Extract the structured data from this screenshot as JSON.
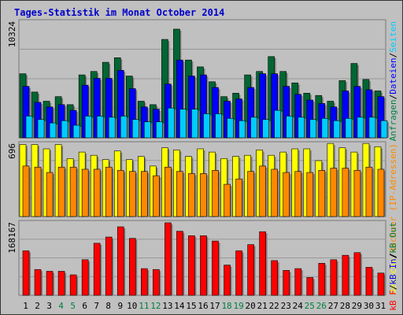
{
  "title": "Tages-Statistik im Monat October 2014",
  "colors": {
    "title": "#0000CC",
    "border": "#333333",
    "plot_bg": "#C0C0C0",
    "grid": "#999999",
    "hits": "#006633",
    "files": "#0000FF",
    "pages": "#00CCFF",
    "visits": "#FFFF00",
    "sites": "#FF8800",
    "kbin": "#FF0000",
    "label_blue": "#0000FF",
    "label_green": "#008040",
    "label_orange": "#FF8800",
    "label_red": "#FF0000",
    "weekend_day": "#008040",
    "week_day": "#000000"
  },
  "chart_data": [
    {
      "type": "bar",
      "panel": "requests",
      "ymax_label": "10324",
      "ylim": [
        0,
        10324
      ],
      "right_label": [
        {
          "text": "Anfragen",
          "color": "#008040"
        },
        {
          "text": "/",
          "color": "#000000"
        },
        {
          "text": "Dateien",
          "color": "#0000FF"
        },
        {
          "text": "/",
          "color": "#000000"
        },
        {
          "text": "Seiten",
          "color": "#00CCFF"
        }
      ],
      "series": [
        {
          "name": "Anfragen",
          "values": [
            5600,
            4000,
            3200,
            3600,
            2900,
            5500,
            5800,
            6600,
            7000,
            5400,
            3200,
            2900,
            8600,
            9500,
            6800,
            6200,
            4900,
            3600,
            3900,
            5500,
            5800,
            7100,
            5800,
            4800,
            3900,
            3700,
            3200,
            5000,
            6500,
            5100,
            4100
          ]
        },
        {
          "name": "Dateien",
          "values": [
            4500,
            3100,
            2700,
            2900,
            2400,
            4600,
            5200,
            5200,
            5900,
            4300,
            2700,
            2500,
            4700,
            6800,
            5400,
            5500,
            4400,
            3200,
            3400,
            4400,
            5600,
            5600,
            4500,
            3800,
            3300,
            3000,
            2700,
            4100,
            4500,
            4200,
            3600
          ]
        },
        {
          "name": "Seiten",
          "values": [
            1900,
            1600,
            1300,
            1500,
            1100,
            1900,
            1900,
            1800,
            1900,
            1600,
            1400,
            1400,
            2600,
            2500,
            2500,
            2100,
            2100,
            1700,
            1500,
            1800,
            1600,
            2400,
            1900,
            1800,
            1600,
            1700,
            1500,
            1700,
            1800,
            1800,
            1500
          ]
        }
      ]
    },
    {
      "type": "bar",
      "panel": "visits",
      "ymax_label": "696",
      "ylim": [
        0,
        696
      ],
      "right_label": [
        {
          "text": "Besuche",
          "color": "#FFFF00"
        },
        {
          "text": "/",
          "color": "#000000"
        },
        {
          "text": "Rechner (IP-Adressen)",
          "color": "#FF8800"
        }
      ],
      "series": [
        {
          "name": "Besuche",
          "values": [
            670,
            670,
            630,
            670,
            540,
            600,
            570,
            530,
            610,
            530,
            560,
            470,
            640,
            620,
            560,
            630,
            600,
            540,
            560,
            570,
            620,
            570,
            600,
            630,
            630,
            520,
            680,
            640,
            600,
            680,
            650
          ]
        },
        {
          "name": "Rechner (IP-Adressen)",
          "values": [
            470,
            460,
            410,
            460,
            460,
            440,
            440,
            460,
            430,
            420,
            420,
            380,
            460,
            420,
            400,
            400,
            430,
            300,
            350,
            420,
            470,
            440,
            410,
            420,
            410,
            430,
            450,
            450,
            430,
            460,
            440
          ]
        }
      ]
    },
    {
      "type": "bar",
      "panel": "traffic",
      "ymax_label": "168167",
      "ylim": [
        0,
        168167
      ],
      "right_label": [
        {
          "text": "kB F",
          "color": "#FF0000"
        },
        {
          "text": "/",
          "color": "#000000"
        },
        {
          "text": "kB In",
          "color": "#0000FF"
        },
        {
          "text": "/",
          "color": "#000000"
        },
        {
          "text": "kB Out",
          "color": "#008040"
        }
      ],
      "series": [
        {
          "name": "kB F",
          "values": [
            100000,
            58000,
            54000,
            54000,
            46000,
            80000,
            117000,
            131000,
            154000,
            128000,
            60000,
            58000,
            163000,
            144000,
            134000,
            134000,
            122000,
            68000,
            100000,
            114000,
            143000,
            78000,
            56000,
            60000,
            40000,
            72000,
            80000,
            90000,
            96000,
            63000,
            50000
          ]
        }
      ]
    }
  ],
  "x_labels": [
    "1",
    "2",
    "3",
    "4",
    "5",
    "6",
    "7",
    "8",
    "9",
    "10",
    "11",
    "12",
    "13",
    "14",
    "15",
    "16",
    "17",
    "18",
    "19",
    "20",
    "21",
    "22",
    "23",
    "24",
    "25",
    "26",
    "27",
    "28",
    "29",
    "30",
    "31"
  ],
  "weekend_days": [
    "4",
    "5",
    "11",
    "12",
    "18",
    "19",
    "25",
    "26"
  ]
}
